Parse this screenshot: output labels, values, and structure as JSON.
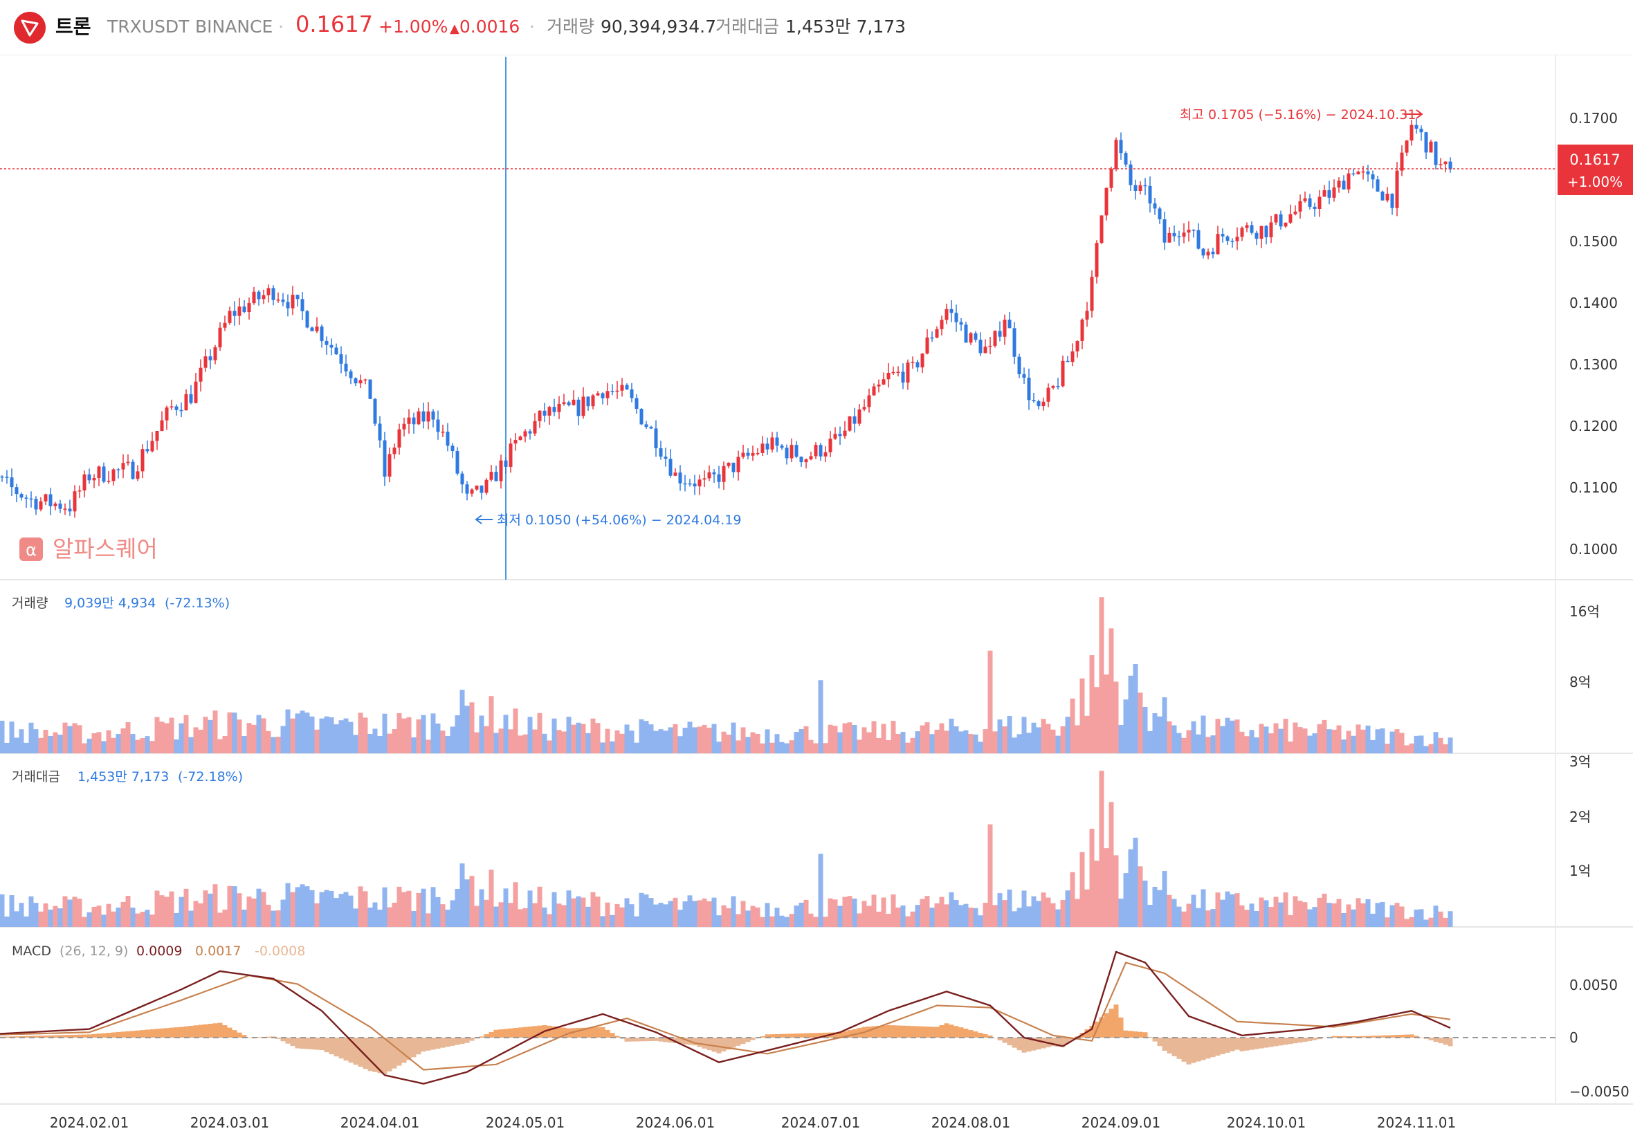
{
  "header": {
    "name": "트론",
    "symbol": "TRXUSDT",
    "exchange": "BINANCE",
    "price": "0.1617",
    "change_pct": "+1.00%",
    "change_abs": "0.0016",
    "volume_label": "거래량",
    "volume_value": "90,394,934.7",
    "amount_label": "거래대금",
    "amount_value": "1,453만 7,173",
    "separator": "·"
  },
  "watermark": "알파스퀘어",
  "price_badge": {
    "price": "0.1617",
    "pct": "+1.00%"
  },
  "annotations": {
    "high": "최고 0.1705 (−5.16%) − 2024.10.31",
    "low": "최저 0.1050 (+54.06%) − 2024.04.19"
  },
  "panels": {
    "volume": {
      "title": "거래량",
      "value": "9,039만 4,934",
      "pct": "(-72.13%)",
      "axis": [
        "16억",
        "8억"
      ]
    },
    "amount": {
      "title": "거래대금",
      "value": "1,453만 7,173",
      "pct": "(-72.18%)",
      "axis": [
        "3억",
        "2억",
        "1억"
      ]
    },
    "macd": {
      "title": "MACD",
      "params": "(26, 12, 9)",
      "macd_value": "0.0009",
      "signal_value": "0.0017",
      "hist_value": "-0.0008",
      "axis": [
        "0.0050",
        "0",
        "−0.0050"
      ]
    }
  },
  "colors": {
    "up": "#e8343a",
    "down": "#2f7ae0",
    "up_light": "#f5a0a0",
    "down_light": "#8fb4f0",
    "macd": "#7a1f1f",
    "signal": "#c8814e",
    "hist": "#f2a66a",
    "hist_neg": "#e8b896",
    "crosshair": "#4a9ae0"
  },
  "chart_data": {
    "type": "candlestick",
    "title": "트론 TRXUSDT BINANCE",
    "x_labels": [
      "2024.02.01",
      "2024.03.01",
      "2024.04.01",
      "2024.05.01",
      "2024.06.01",
      "2024.07.01",
      "2024.08.01",
      "2024.09.01",
      "2024.10.01",
      "2024.11.01"
    ],
    "y_ticks": [
      "0.1700",
      "0.1600",
      "0.1500",
      "0.1400",
      "0.1300",
      "0.1200",
      "0.1100",
      "0.1000"
    ],
    "ylim": [
      0.0955,
      0.1785
    ],
    "close_path": [
      [
        "2024.01.07",
        0.114
      ],
      [
        "2024.01.20",
        0.108
      ],
      [
        "2024.01.28",
        0.107
      ],
      [
        "2024.02.01",
        0.112
      ],
      [
        "2024.02.10",
        0.113
      ],
      [
        "2024.02.18",
        0.123
      ],
      [
        "2024.02.22",
        0.125
      ],
      [
        "2024.03.01",
        0.138
      ],
      [
        "2024.03.05",
        0.14
      ],
      [
        "2024.03.10",
        0.142
      ],
      [
        "2024.03.14",
        0.14
      ],
      [
        "2024.03.20",
        0.135
      ],
      [
        "2024.03.25",
        0.13
      ],
      [
        "2024.03.30",
        0.125
      ],
      [
        "2024.04.02",
        0.112
      ],
      [
        "2024.04.05",
        0.1195
      ],
      [
        "2024.04.08",
        0.1205
      ],
      [
        "2024.04.12",
        0.122
      ],
      [
        "2024.04.15",
        0.117
      ],
      [
        "2024.04.19",
        0.108
      ],
      [
        "2024.04.23",
        0.11
      ],
      [
        "2024.04.30",
        0.118
      ],
      [
        "2024.05.05",
        0.122
      ],
      [
        "2024.05.12",
        0.123
      ],
      [
        "2024.05.17",
        0.126
      ],
      [
        "2024.05.22",
        0.125
      ],
      [
        "2024.05.28",
        0.118
      ],
      [
        "2024.06.01",
        0.112
      ],
      [
        "2024.06.07",
        0.1105
      ],
      [
        "2024.06.12",
        0.113
      ],
      [
        "2024.06.20",
        0.117
      ],
      [
        "2024.06.28",
        0.115
      ],
      [
        "2024.07.05",
        0.118
      ],
      [
        "2024.07.10",
        0.123
      ],
      [
        "2024.07.15",
        0.128
      ],
      [
        "2024.07.20",
        0.129
      ],
      [
        "2024.07.24",
        0.135
      ],
      [
        "2024.07.27",
        0.139
      ],
      [
        "2024.08.01",
        0.134
      ],
      [
        "2024.08.05",
        0.132
      ],
      [
        "2024.08.08",
        0.138
      ],
      [
        "2024.08.12",
        0.127
      ],
      [
        "2024.08.15",
        0.122
      ],
      [
        "2024.08.18",
        0.126
      ],
      [
        "2024.08.22",
        0.132
      ],
      [
        "2024.08.26",
        0.143
      ],
      [
        "2024.08.29",
        0.16
      ],
      [
        "2024.08.31",
        0.166
      ],
      [
        "2024.09.03",
        0.159
      ],
      [
        "2024.09.07",
        0.157
      ],
      [
        "2024.09.10",
        0.15
      ],
      [
        "2024.09.14",
        0.153
      ],
      [
        "2024.09.18",
        0.148
      ],
      [
        "2024.09.22",
        0.151
      ],
      [
        "2024.09.26",
        0.152
      ],
      [
        "2024.10.01",
        0.152
      ],
      [
        "2024.10.05",
        0.154
      ],
      [
        "2024.10.10",
        0.156
      ],
      [
        "2024.10.15",
        0.158
      ],
      [
        "2024.10.19",
        0.162
      ],
      [
        "2024.10.23",
        0.159
      ],
      [
        "2024.10.27",
        0.157
      ],
      [
        "2024.10.31",
        0.169
      ],
      [
        "2024.11.03",
        0.166
      ],
      [
        "2024.11.06",
        0.162
      ],
      [
        "2024.11.08",
        0.1617
      ]
    ],
    "volume_profile": [
      [
        "2024.01.07",
        2.6
      ],
      [
        "2024.02.01",
        2.2
      ],
      [
        "2024.02.20",
        3.0
      ],
      [
        "2024.03.05",
        3.4
      ],
      [
        "2024.03.25",
        3.2
      ],
      [
        "2024.04.10",
        3.2
      ],
      [
        "2024.04.20",
        5.0
      ],
      [
        "2024.05.01",
        3.0
      ],
      [
        "2024.06.01",
        2.4
      ],
      [
        "2024.07.01",
        2.2
      ],
      [
        "2024.08.01",
        2.6
      ],
      [
        "2024.08.20",
        3.4
      ],
      [
        "2024.08.28",
        9.0
      ],
      [
        "2024.09.03",
        6.0
      ],
      [
        "2024.09.15",
        2.8
      ],
      [
        "2024.10.15",
        2.4
      ],
      [
        "2024.11.08",
        1.6
      ]
    ],
    "volume_spikes": [
      [
        "2024.07.01",
        8.2
      ],
      [
        "2024.08.05",
        11.5
      ],
      [
        "2024.08.28",
        17.5
      ],
      [
        "2024.08.30",
        14.0
      ],
      [
        "2024.09.04",
        10.0
      ]
    ],
    "macd_path": [
      [
        "2024.01.07",
        0.0002
      ],
      [
        "2024.02.01",
        0.0008
      ],
      [
        "2024.02.20",
        0.0045
      ],
      [
        "2024.02.28",
        0.0062
      ],
      [
        "2024.03.10",
        0.0055
      ],
      [
        "2024.03.20",
        0.0025
      ],
      [
        "2024.04.02",
        -0.0035
      ],
      [
        "2024.04.10",
        -0.0043
      ],
      [
        "2024.04.19",
        -0.0032
      ],
      [
        "2024.05.05",
        0.0006
      ],
      [
        "2024.05.17",
        0.0022
      ],
      [
        "2024.05.28",
        0.0005
      ],
      [
        "2024.06.10",
        -0.0023
      ],
      [
        "2024.06.20",
        -0.0012
      ],
      [
        "2024.07.05",
        0.0005
      ],
      [
        "2024.07.15",
        0.0025
      ],
      [
        "2024.07.27",
        0.0043
      ],
      [
        "2024.08.05",
        0.003
      ],
      [
        "2024.08.12",
        0.0
      ],
      [
        "2024.08.20",
        -0.0008
      ],
      [
        "2024.08.26",
        0.0008
      ],
      [
        "2024.08.31",
        0.008
      ],
      [
        "2024.09.06",
        0.007
      ],
      [
        "2024.09.15",
        0.002
      ],
      [
        "2024.09.26",
        0.0002
      ],
      [
        "2024.10.10",
        0.0008
      ],
      [
        "2024.10.20",
        0.0015
      ],
      [
        "2024.10.31",
        0.0025
      ],
      [
        "2024.11.08",
        0.0009
      ]
    ],
    "signal_path": [
      [
        "2024.01.07",
        0.0002
      ],
      [
        "2024.02.01",
        0.0005
      ],
      [
        "2024.02.20",
        0.0035
      ],
      [
        "2024.03.05",
        0.0058
      ],
      [
        "2024.03.15",
        0.005
      ],
      [
        "2024.03.30",
        0.001
      ],
      [
        "2024.04.10",
        -0.003
      ],
      [
        "2024.04.25",
        -0.0025
      ],
      [
        "2024.05.10",
        0.0004
      ],
      [
        "2024.05.22",
        0.0018
      ],
      [
        "2024.06.05",
        -0.0005
      ],
      [
        "2024.06.20",
        -0.0015
      ],
      [
        "2024.07.10",
        0.0005
      ],
      [
        "2024.07.25",
        0.003
      ],
      [
        "2024.08.05",
        0.0028
      ],
      [
        "2024.08.18",
        0.0002
      ],
      [
        "2024.08.26",
        -0.0003
      ],
      [
        "2024.09.02",
        0.007
      ],
      [
        "2024.09.10",
        0.006
      ],
      [
        "2024.09.25",
        0.0015
      ],
      [
        "2024.10.15",
        0.001
      ],
      [
        "2024.10.31",
        0.0022
      ],
      [
        "2024.11.08",
        0.0017
      ]
    ]
  }
}
